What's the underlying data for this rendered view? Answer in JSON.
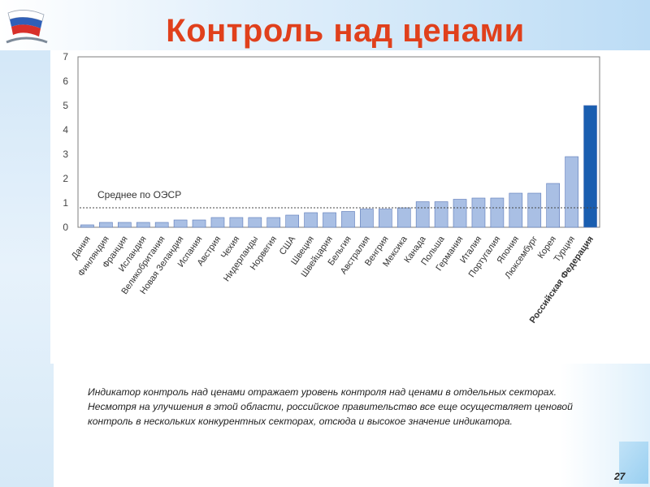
{
  "slide": {
    "title": "Контроль над ценами",
    "caption_lines": [
      "Индикатор контроль над ценами отражает уровень контроля над ценами в отдельных секторах.",
      "Несмотря на улучшения в этой области, российское правительство все еще осуществляет ценовой",
      "контроль в нескольких конкурентных секторах, отсюда и высокое значение индикатора."
    ],
    "page_number": "27"
  },
  "colors": {
    "title": "#e0401c",
    "bar": "#a9bfe4",
    "bar_stroke": "#5a78b8",
    "highlight_bar": "#1a5eb0"
  },
  "chart_data": {
    "type": "bar",
    "categories": [
      "Дания",
      "Финляндия",
      "Франция",
      "Исландия",
      "Великобритания",
      "Новая Зеландия",
      "Испания",
      "Австрия",
      "Чехия",
      "Нидерланды",
      "Норвегия",
      "США",
      "Швеция",
      "Швейцария",
      "Бельгия",
      "Австралия",
      "Венгрия",
      "Мексика",
      "Канада",
      "Польша",
      "Германия",
      "Италия",
      "Португалия",
      "Япония",
      "Люксембург",
      "Корея",
      "Турция",
      "Российская Федерация"
    ],
    "values": [
      0.1,
      0.2,
      0.2,
      0.2,
      0.2,
      0.3,
      0.3,
      0.4,
      0.4,
      0.4,
      0.4,
      0.5,
      0.6,
      0.6,
      0.65,
      0.75,
      0.75,
      0.8,
      1.05,
      1.05,
      1.15,
      1.2,
      1.2,
      1.4,
      1.4,
      1.8,
      2.9,
      5.0
    ],
    "highlight_index": 27,
    "ylim": [
      0,
      7
    ],
    "yticks": [
      0,
      1,
      2,
      3,
      4,
      5,
      6,
      7
    ],
    "reference_line": {
      "label": "Среднее по ОЭСР",
      "value": 0.8
    }
  }
}
